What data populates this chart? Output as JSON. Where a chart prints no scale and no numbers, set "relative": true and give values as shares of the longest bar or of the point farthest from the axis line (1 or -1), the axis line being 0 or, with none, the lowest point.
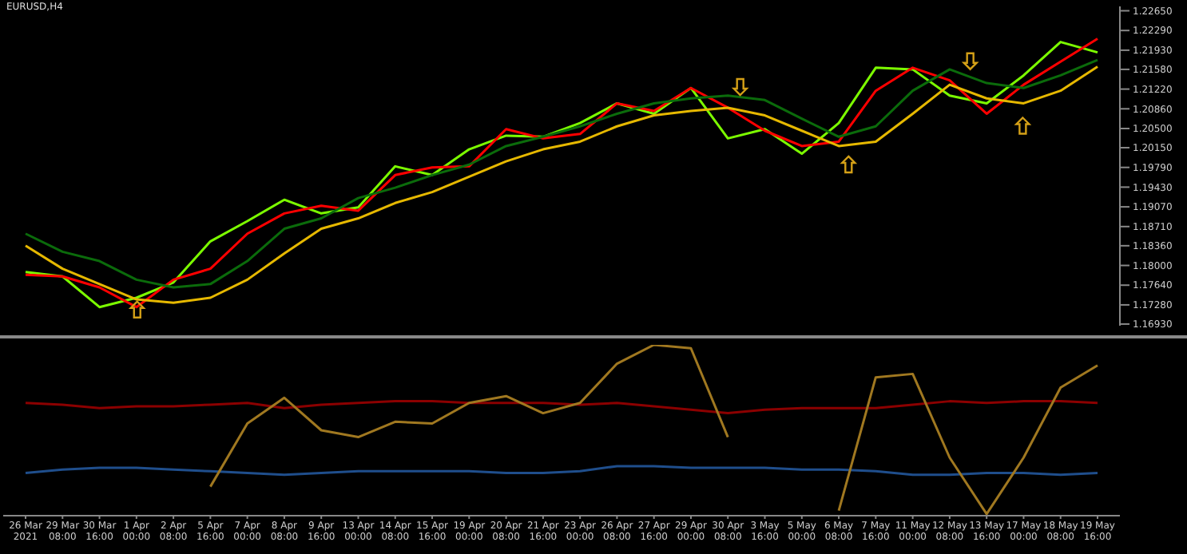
{
  "chart_data": [
    {
      "type": "line",
      "title": "EURUSD,H4",
      "categories": [
        null,
        null,
        null,
        null,
        null,
        null,
        null,
        null,
        null,
        null,
        null,
        null,
        null,
        null,
        null,
        null,
        null,
        null,
        null,
        null,
        null,
        null,
        null,
        null,
        null,
        null,
        null,
        null,
        null,
        null
      ],
      "series": [
        {
          "color": "#7cfc00",
          "values": [
            1.1788,
            1.178,
            1.1724,
            1.1741,
            1.1769,
            1.1844,
            1.1881,
            1.192,
            1.1895,
            1.1906,
            1.1981,
            1.1965,
            1.2012,
            1.2037,
            1.2035,
            1.206,
            1.2096,
            1.2077,
            1.2124,
            1.2032,
            1.2049,
            1.2004,
            1.206,
            1.2161,
            1.2158,
            1.211,
            1.2096,
            1.2147,
            1.2208,
            1.2189
          ]
        },
        {
          "color": "#ff0000",
          "values": [
            1.1783,
            1.178,
            1.176,
            1.1724,
            1.1774,
            1.1794,
            1.1858,
            1.1895,
            1.1909,
            1.19,
            1.1965,
            1.1979,
            1.1981,
            1.2049,
            1.2032,
            1.204,
            1.2096,
            1.2082,
            1.2124,
            1.2088,
            1.2046,
            1.2018,
            1.2026,
            1.2119,
            1.2161,
            1.2138,
            1.2077,
            1.213,
            1.2172,
            1.2214
          ]
        },
        {
          "color": "#0b6b0b",
          "values": [
            1.1858,
            1.1825,
            1.1808,
            1.1774,
            1.176,
            1.1766,
            1.1808,
            1.1867,
            1.1886,
            1.1923,
            1.1942,
            1.1965,
            1.1984,
            1.2018,
            1.2035,
            1.2054,
            1.2077,
            1.2096,
            1.2105,
            1.211,
            1.2102,
            1.2068,
            1.2035,
            1.2054,
            1.2119,
            1.2158,
            1.2133,
            1.2124,
            1.2147,
            1.2175
          ]
        },
        {
          "color": "#e6b800",
          "values": [
            1.1836,
            1.1794,
            1.1766,
            1.1738,
            1.1732,
            1.1741,
            1.1774,
            1.1822,
            1.1867,
            1.1886,
            1.1914,
            1.1934,
            1.1962,
            1.199,
            1.2012,
            1.2026,
            1.2054,
            1.2074,
            1.2082,
            1.2088,
            1.2074,
            1.2046,
            1.2018,
            1.2026,
            1.2077,
            1.213,
            1.2105,
            1.2096,
            1.2119,
            1.2163
          ]
        }
      ],
      "ylim": [
        1.169,
        1.2273
      ],
      "yticks": [
        {
          "value": 1.2265,
          "label": "1.22650"
        },
        {
          "value": 1.2229,
          "label": "1.22290"
        },
        {
          "value": 1.2193,
          "label": "1.21930"
        },
        {
          "value": 1.2158,
          "label": "1.21580"
        },
        {
          "value": 1.2122,
          "label": "1.21220"
        },
        {
          "value": 1.2086,
          "label": "1.20860"
        },
        {
          "value": 1.205,
          "label": "1.20500"
        },
        {
          "value": 1.2015,
          "label": "1.20150"
        },
        {
          "value": 1.1979,
          "label": "1.19790"
        },
        {
          "value": 1.1943,
          "label": "1.19430"
        },
        {
          "value": 1.1907,
          "label": "1.19070"
        },
        {
          "value": 1.1871,
          "label": "1.18710"
        },
        {
          "value": 1.1836,
          "label": "1.18360"
        },
        {
          "value": 1.18,
          "label": "1.18000"
        },
        {
          "value": 1.1764,
          "label": "1.17640"
        },
        {
          "value": 1.1728,
          "label": "1.17280"
        },
        {
          "value": 1.1693,
          "label": "1.16930"
        }
      ],
      "tick_labels": "y",
      "marker": "none",
      "line_style": "solid"
    },
    {
      "type": "line",
      "relative": true,
      "categories": [
        "26 Mar 2021",
        "29 Mar 08:00",
        "30 Mar 16:00",
        "1 Apr 00:00",
        "2 Apr 08:00",
        "5 Apr 16:00",
        "7 Apr 00:00",
        "8 Apr 08:00",
        "9 Apr 16:00",
        "13 Apr 00:00",
        "14 Apr 08:00",
        "15 Apr 16:00",
        "19 Apr 00:00",
        "20 Apr 08:00",
        "21 Apr 16:00",
        "23 Apr 00:00",
        "26 Apr 08:00",
        "27 Apr 16:00",
        "29 Apr 00:00",
        "30 Apr 08:00",
        "3 May 16:00",
        "5 May 00:00",
        "6 May 08:00",
        "7 May 16:00",
        "11 May 00:00",
        "12 May 08:00",
        "13 May 16:00",
        "17 May 00:00",
        "18 May 08:00",
        "19 May 16:00"
      ],
      "series": [
        {
          "color": "#8b0000",
          "values": [
            0.66,
            0.65,
            0.63,
            0.64,
            0.64,
            0.65,
            0.66,
            0.63,
            0.65,
            0.66,
            0.67,
            0.67,
            0.66,
            0.66,
            0.66,
            0.65,
            0.66,
            0.64,
            0.62,
            0.6,
            0.62,
            0.63,
            0.63,
            0.63,
            0.65,
            0.67,
            0.66,
            0.67,
            0.67,
            0.66
          ]
        },
        {
          "color": "#1f4e8c",
          "values": [
            0.25,
            0.27,
            0.28,
            0.28,
            0.27,
            0.26,
            0.25,
            0.24,
            0.25,
            0.26,
            0.26,
            0.26,
            0.26,
            0.25,
            0.25,
            0.26,
            0.29,
            0.29,
            0.28,
            0.28,
            0.28,
            0.27,
            0.27,
            0.26,
            0.24,
            0.24,
            0.25,
            0.25,
            0.24,
            0.25
          ]
        },
        {
          "color": "#a07820",
          "values": [
            null,
            null,
            null,
            null,
            null,
            0.17,
            0.54,
            0.69,
            0.5,
            0.46,
            0.55,
            0.54,
            0.66,
            0.7,
            0.6,
            0.66,
            0.89,
            1.0,
            0.98,
            0.46,
            null,
            null,
            0.03,
            0.81,
            0.83,
            0.34,
            0.01,
            0.34,
            0.75,
            0.88
          ]
        }
      ],
      "tick_labels": "x",
      "marker": "none",
      "line_style": "solid"
    }
  ]
}
